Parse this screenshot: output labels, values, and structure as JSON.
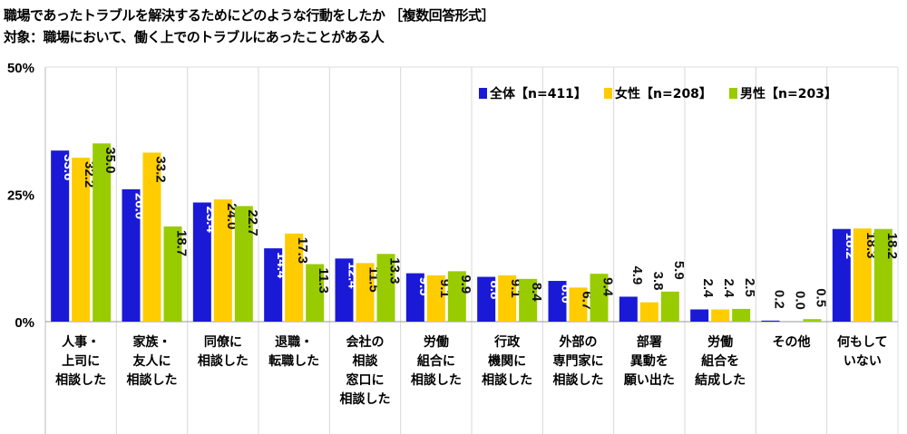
{
  "chart_data": {
    "type": "bar",
    "title": "職場であったトラブルを解決するためにどのような行動をしたか ［複数回答形式］",
    "subtitle": "対象：職場において、働く上でのトラブルにあったことがある人",
    "xlabel": "",
    "ylabel": "",
    "ylim": [
      0,
      50
    ],
    "yticks": [
      "0%",
      "25%",
      "50%"
    ],
    "ytick_values": [
      0,
      25,
      50
    ],
    "legend_position": "top-right",
    "categories": [
      [
        "人事・",
        "上司に",
        "相談した"
      ],
      [
        "家族・",
        "友人に",
        "相談した"
      ],
      [
        "同僚に",
        "相談した"
      ],
      [
        "退職・",
        "転職した"
      ],
      [
        "会社の",
        "相談",
        "窓口に",
        "相談した"
      ],
      [
        "労働",
        "組合に",
        "相談した"
      ],
      [
        "行政",
        "機関に",
        "相談した"
      ],
      [
        "外部の",
        "専門家に",
        "相談した"
      ],
      [
        "部署",
        "異動を",
        "願い出た"
      ],
      [
        "労働",
        "組合を",
        "結成した"
      ],
      [
        "その他"
      ],
      [
        "何もして",
        "いない"
      ]
    ],
    "series": [
      {
        "name": "全体【n=411】",
        "color": "#1a1ad6",
        "values": [
          33.6,
          26.0,
          23.4,
          14.4,
          12.4,
          9.5,
          8.8,
          8.0,
          4.9,
          2.4,
          0.2,
          18.2
        ]
      },
      {
        "name": "女性【n=208】",
        "color": "#ffcc00",
        "values": [
          32.2,
          33.2,
          24.0,
          17.3,
          11.5,
          9.1,
          9.1,
          6.7,
          3.8,
          2.4,
          0.0,
          18.3
        ]
      },
      {
        "name": "男性【n=203】",
        "color": "#99cc00",
        "values": [
          35.0,
          18.7,
          22.7,
          11.3,
          13.3,
          9.9,
          8.4,
          9.4,
          5.9,
          2.5,
          0.5,
          18.2
        ]
      }
    ]
  }
}
